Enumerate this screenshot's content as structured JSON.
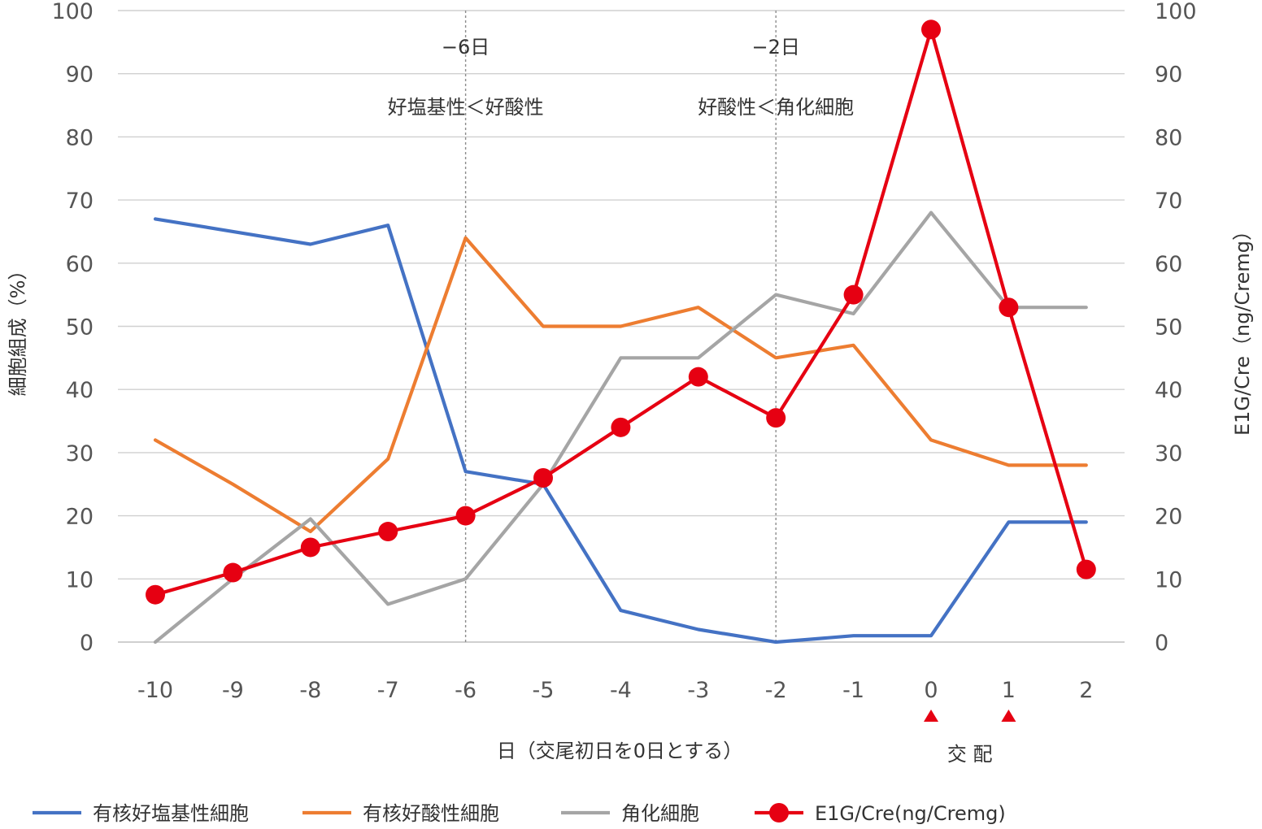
{
  "chart_data": {
    "type": "line",
    "x": [
      -10,
      -9,
      -8,
      -7,
      -6,
      -5,
      -4,
      -3,
      -2,
      -1,
      0,
      1,
      2
    ],
    "x_tick_labels": [
      "-10",
      "-9",
      "-8",
      "-7",
      "-6",
      "-5",
      "-4",
      "-3",
      "-2",
      "-1",
      "0",
      "1",
      "2"
    ],
    "xlabel": "日（交尾初日を0日とする）",
    "ylabel_left": "細胞組成（%）",
    "ylabel_right": "E1G/Cre（ng/Cremg）",
    "ylim_left": [
      0,
      100
    ],
    "ylim_right": [
      0,
      100
    ],
    "y_ticks_left": [
      "0",
      "10",
      "20",
      "30",
      "40",
      "50",
      "60",
      "70",
      "80",
      "90",
      "100"
    ],
    "y_ticks_right": [
      "0",
      "10",
      "20",
      "30",
      "40",
      "50",
      "60",
      "70",
      "80",
      "90",
      "100"
    ],
    "grid": "horizontal",
    "legend_position": "bottom",
    "series": [
      {
        "name": "有核好塩基性細胞",
        "axis": "left",
        "color": "#4472C4",
        "markers": false,
        "values": [
          67,
          65,
          63,
          66,
          27,
          25,
          5,
          2,
          0,
          1,
          1,
          19,
          19
        ]
      },
      {
        "name": "有核好酸性細胞",
        "axis": "left",
        "color": "#ED7D31",
        "markers": false,
        "values": [
          32,
          25,
          17.5,
          29,
          64,
          50,
          50,
          53,
          45,
          47,
          32,
          28,
          28
        ]
      },
      {
        "name": "角化細胞",
        "axis": "left",
        "color": "#A5A5A5",
        "markers": false,
        "values": [
          0,
          10,
          19.5,
          6,
          10,
          25,
          45,
          45,
          55,
          52,
          68,
          53,
          53
        ]
      },
      {
        "name": "E1G/Cre(ng/Cremg)",
        "axis": "right",
        "color": "#E60012",
        "markers": true,
        "values": [
          7.5,
          11,
          15,
          17.5,
          20,
          26,
          34,
          42,
          35.5,
          55,
          97,
          53,
          11.5
        ]
      }
    ],
    "annotations": [
      {
        "x": -6,
        "line": "dotted",
        "label": "−6日",
        "sublabel": "好塩基性＜好酸性"
      },
      {
        "x": -2,
        "line": "dotted",
        "label": "−2日",
        "sublabel": "好酸性＜角化細胞"
      }
    ],
    "mating_markers": {
      "x": [
        0,
        1
      ],
      "color": "#E60012",
      "label": "交 配"
    }
  }
}
